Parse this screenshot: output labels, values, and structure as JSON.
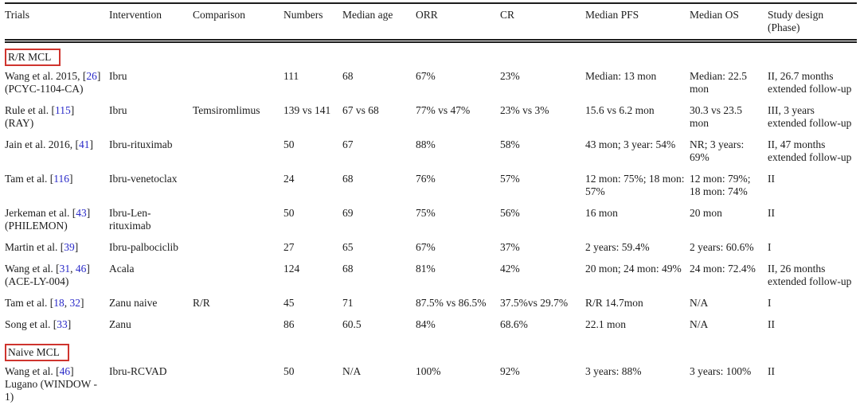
{
  "table": {
    "columns": [
      "Trials",
      "Intervention",
      "Comparison",
      "Numbers",
      "Median age",
      "ORR",
      "CR",
      "Median PFS",
      "Median OS",
      "Study design (Phase)"
    ],
    "sections": [
      {
        "label": "R/R MCL",
        "rows": [
          [
            "Wang et al. 2015, [26] (PCYC-1104-CA)",
            "Ibru",
            "",
            "111",
            "68",
            "67%",
            "23%",
            "Median: 13 mon",
            "Median: 22.5 mon",
            "II, 26.7 months extended follow-up"
          ],
          [
            "Rule et al. [115] (RAY)",
            "Ibru",
            "Temsiromlimus",
            "139 vs 141",
            "67 vs 68",
            "77% vs 47%",
            "23% vs 3%",
            "15.6 vs 6.2 mon",
            "30.3 vs 23.5 mon",
            "III, 3 years extended follow-up"
          ],
          [
            "Jain et al. 2016, [41]",
            "Ibru-rituximab",
            "",
            "50",
            "67",
            "88%",
            "58%",
            "43 mon; 3 year: 54%",
            "NR; 3 years: 69%",
            "II, 47 months extended follow-up"
          ],
          [
            "Tam et al. [116]",
            "Ibru-venetoclax",
            "",
            "24",
            "68",
            "76%",
            "57%",
            "12 mon: 75%; 18 mon: 57%",
            "12 mon: 79%; 18 mon: 74%",
            "II"
          ],
          [
            "Jerkeman et al. [43] (PHILEMON)",
            "Ibru-Len-rituximab",
            "",
            "50",
            "69",
            "75%",
            "56%",
            "16 mon",
            "20 mon",
            "II"
          ],
          [
            "Martin et al. [39]",
            "Ibru-palbociclib",
            "",
            "27",
            "65",
            "67%",
            "37%",
            "2 years: 59.4%",
            "2 years: 60.6%",
            "I"
          ],
          [
            "Wang et al. [31, 46] (ACE-LY-004)",
            "Acala",
            "",
            "124",
            "68",
            "81%",
            "42%",
            "20 mon; 24 mon: 49%",
            "24 mon: 72.4%",
            "II, 26 months extended follow-up"
          ],
          [
            "Tam et al. [18, 32]",
            "Zanu naive",
            "R/R",
            "45",
            "71",
            "87.5% vs 86.5%",
            "37.5%vs 29.7%",
            "R/R 14.7mon",
            "N/A",
            "I"
          ],
          [
            "Song et al. [33]",
            "Zanu",
            "",
            "86",
            "60.5",
            "84%",
            "68.6%",
            "22.1 mon",
            "N/A",
            "II"
          ]
        ]
      },
      {
        "label": "Naive MCL",
        "rows": [
          [
            "Wang et al. [46] Lugano (WINDOW - 1)",
            "Ibru-RCVAD",
            "",
            "50",
            "N/A",
            "100%",
            "92%",
            "3 years: 88%",
            "3 years: 100%",
            "II"
          ]
        ]
      }
    ]
  },
  "colors": {
    "reference_blue": "#2a2ac8",
    "section_box_red": "#cf342e"
  }
}
